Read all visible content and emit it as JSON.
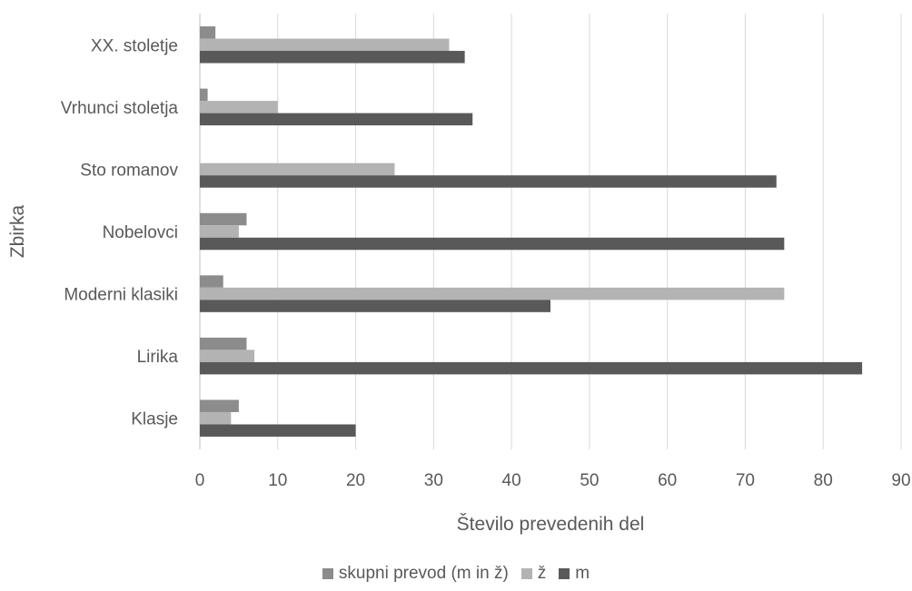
{
  "chart_data": {
    "type": "bar",
    "orientation": "horizontal",
    "title": "",
    "xlabel": "Število prevedenih del",
    "ylabel": "Zbirka",
    "xlim": [
      0,
      90
    ],
    "xticks": [
      0,
      10,
      20,
      30,
      40,
      50,
      60,
      70,
      80,
      90
    ],
    "grid": "vertical",
    "legend_position": "bottom",
    "categories": [
      "Klasje",
      "Lirika",
      "Moderni klasiki",
      "Nobelovci",
      "Sto romanov",
      "Vrhunci stoletja",
      "XX. stoletje"
    ],
    "series": [
      {
        "name": "m",
        "color": "#595959",
        "values": [
          20,
          85,
          45,
          75,
          74,
          35,
          34
        ]
      },
      {
        "name": "ž",
        "color": "#b3b3b3",
        "values": [
          4,
          7,
          75,
          5,
          25,
          10,
          32
        ]
      },
      {
        "name": "skupni prevod (m in ž)",
        "color": "#8c8c8c",
        "values": [
          5,
          6,
          3,
          6,
          0,
          1,
          2
        ]
      }
    ],
    "legend_order": [
      "skupni prevod (m in ž)",
      "ž",
      "m"
    ]
  }
}
